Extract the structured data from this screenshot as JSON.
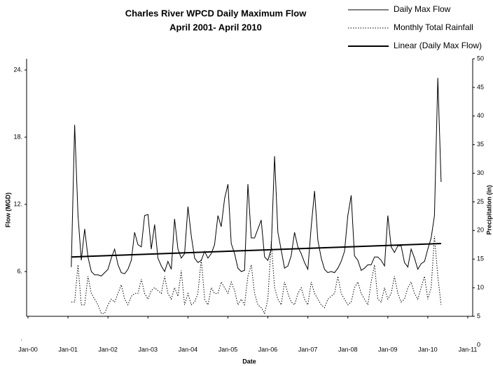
{
  "chart_data": {
    "type": "line",
    "title": "Charles River WPCD Daily Maximum Flow",
    "subtitle": "April 2001- April 2010",
    "x_label": "Date",
    "y_label": "Flow (MGD)",
    "y2_label": "Precipitation (in)",
    "x": [
      13,
      14,
      15,
      16,
      17,
      18,
      19,
      20,
      21,
      22,
      23,
      24,
      25,
      26,
      27,
      28,
      29,
      30,
      31,
      32,
      33,
      34,
      35,
      36,
      37,
      38,
      39,
      40,
      41,
      42,
      43,
      44,
      45,
      46,
      47,
      48,
      49,
      50,
      51,
      52,
      53,
      54,
      55,
      56,
      57,
      58,
      59,
      60,
      61,
      62,
      63,
      64,
      65,
      66,
      67,
      68,
      69,
      70,
      71,
      72,
      73,
      74,
      75,
      76,
      77,
      78,
      79,
      80,
      81,
      82,
      83,
      84,
      85,
      86,
      87,
      88,
      89,
      90,
      91,
      92,
      93,
      94,
      95,
      96,
      97,
      98,
      99,
      100,
      101,
      102,
      103,
      104,
      105,
      106,
      107,
      108,
      109,
      110,
      111,
      112,
      113,
      114,
      115,
      116,
      117,
      118,
      119,
      120,
      121,
      122,
      123,
      124
    ],
    "xlim": [
      0,
      132
    ],
    "xticks": [
      {
        "value": 0,
        "label": "Jan-00"
      },
      {
        "value": 12,
        "label": "Jan-01"
      },
      {
        "value": 24,
        "label": "Jan-02"
      },
      {
        "value": 36,
        "label": "Jan-03"
      },
      {
        "value": 48,
        "label": "Jan-04"
      },
      {
        "value": 60,
        "label": "Jan-05"
      },
      {
        "value": 72,
        "label": "Jan-06"
      },
      {
        "value": 84,
        "label": "Jan-07"
      },
      {
        "value": 96,
        "label": "Jan-08"
      },
      {
        "value": 108,
        "label": "Jan-09"
      },
      {
        "value": 120,
        "label": "Jan-10"
      },
      {
        "value": 132,
        "label": "Jan-11"
      }
    ],
    "ylim": [
      2,
      25
    ],
    "yticks": [
      {
        "value": 0,
        "label": "."
      },
      {
        "value": 6,
        "label": "6."
      },
      {
        "value": 12,
        "label": "12."
      },
      {
        "value": 18,
        "label": "18."
      },
      {
        "value": 24,
        "label": "24."
      }
    ],
    "y2lim": [
      5,
      50
    ],
    "y2ticks": [
      0,
      5,
      10,
      15,
      20,
      25,
      30,
      35,
      40,
      45,
      50
    ],
    "series": [
      {
        "name": "Daily Max Flow",
        "color": "#000000",
        "style": "solid",
        "values": [
          6.4,
          19.1,
          11.0,
          7.0,
          9.8,
          7.3,
          6.0,
          5.7,
          5.7,
          5.6,
          5.9,
          6.2,
          7.2,
          8.0,
          6.6,
          5.9,
          5.8,
          6.2,
          7.0,
          9.5,
          8.4,
          8.2,
          11.0,
          11.1,
          8.0,
          10.2,
          7.2,
          6.5,
          6.0,
          6.9,
          6.2,
          10.7,
          8.0,
          7.2,
          7.6,
          11.8,
          9.2,
          7.2,
          6.8,
          7.0,
          7.8,
          7.2,
          7.6,
          8.4,
          11.0,
          10.0,
          12.5,
          13.8,
          8.5,
          7.6,
          6.3,
          6.0,
          6.1,
          13.8,
          9.0,
          9.0,
          9.8,
          10.6,
          7.3,
          7.0,
          8.0,
          16.3,
          9.5,
          7.9,
          6.3,
          6.5,
          7.4,
          9.5,
          8.2,
          7.6,
          6.8,
          6.2,
          10.0,
          13.2,
          8.8,
          7.2,
          6.2,
          5.9,
          6.0,
          5.9,
          6.3,
          6.9,
          7.8,
          11.0,
          12.8,
          7.4,
          7.0,
          6.1,
          6.3,
          6.6,
          6.6,
          7.3,
          7.3,
          7.0,
          6.5,
          11.0,
          8.2,
          7.7,
          8.3,
          8.3,
          6.8,
          6.4,
          8.0,
          7.2,
          6.2,
          6.7,
          6.9,
          8.0,
          9.0,
          11.0,
          23.3,
          14.0
        ]
      },
      {
        "name": "Monthly Total Rainfall",
        "color": "#000000",
        "style": "dotted",
        "axis": "y2",
        "values": [
          7.5,
          7.5,
          14,
          7,
          7,
          12,
          9,
          8,
          7,
          5.5,
          5.5,
          7,
          8,
          7.5,
          9,
          10.5,
          8,
          7,
          8.5,
          9,
          9,
          11.5,
          9,
          8,
          9.5,
          10,
          9.5,
          9,
          12,
          9,
          8,
          10,
          8.5,
          13,
          7,
          9,
          7,
          7.5,
          9,
          15,
          8,
          7,
          10,
          9,
          9,
          11,
          10,
          9,
          11,
          9.5,
          7,
          8,
          7,
          12,
          14,
          9,
          7,
          6.5,
          5.5,
          8,
          18,
          10,
          8,
          7,
          11,
          9,
          7.5,
          7,
          9,
          10,
          8,
          7,
          11,
          9,
          8,
          7,
          6.5,
          8,
          8.5,
          9,
          12,
          9,
          8,
          7,
          7.5,
          10,
          11,
          9,
          8,
          7,
          11,
          14,
          8,
          7.5,
          10,
          8,
          9,
          12,
          9,
          7.5,
          8,
          10,
          11,
          9,
          8,
          10,
          12,
          8,
          10,
          19,
          12,
          7
        ]
      },
      {
        "name": "Linear (Daily Max Flow)",
        "color": "#000000",
        "style": "thick",
        "x": [
          13,
          124
        ],
        "values": [
          7.3,
          8.5
        ]
      }
    ]
  }
}
